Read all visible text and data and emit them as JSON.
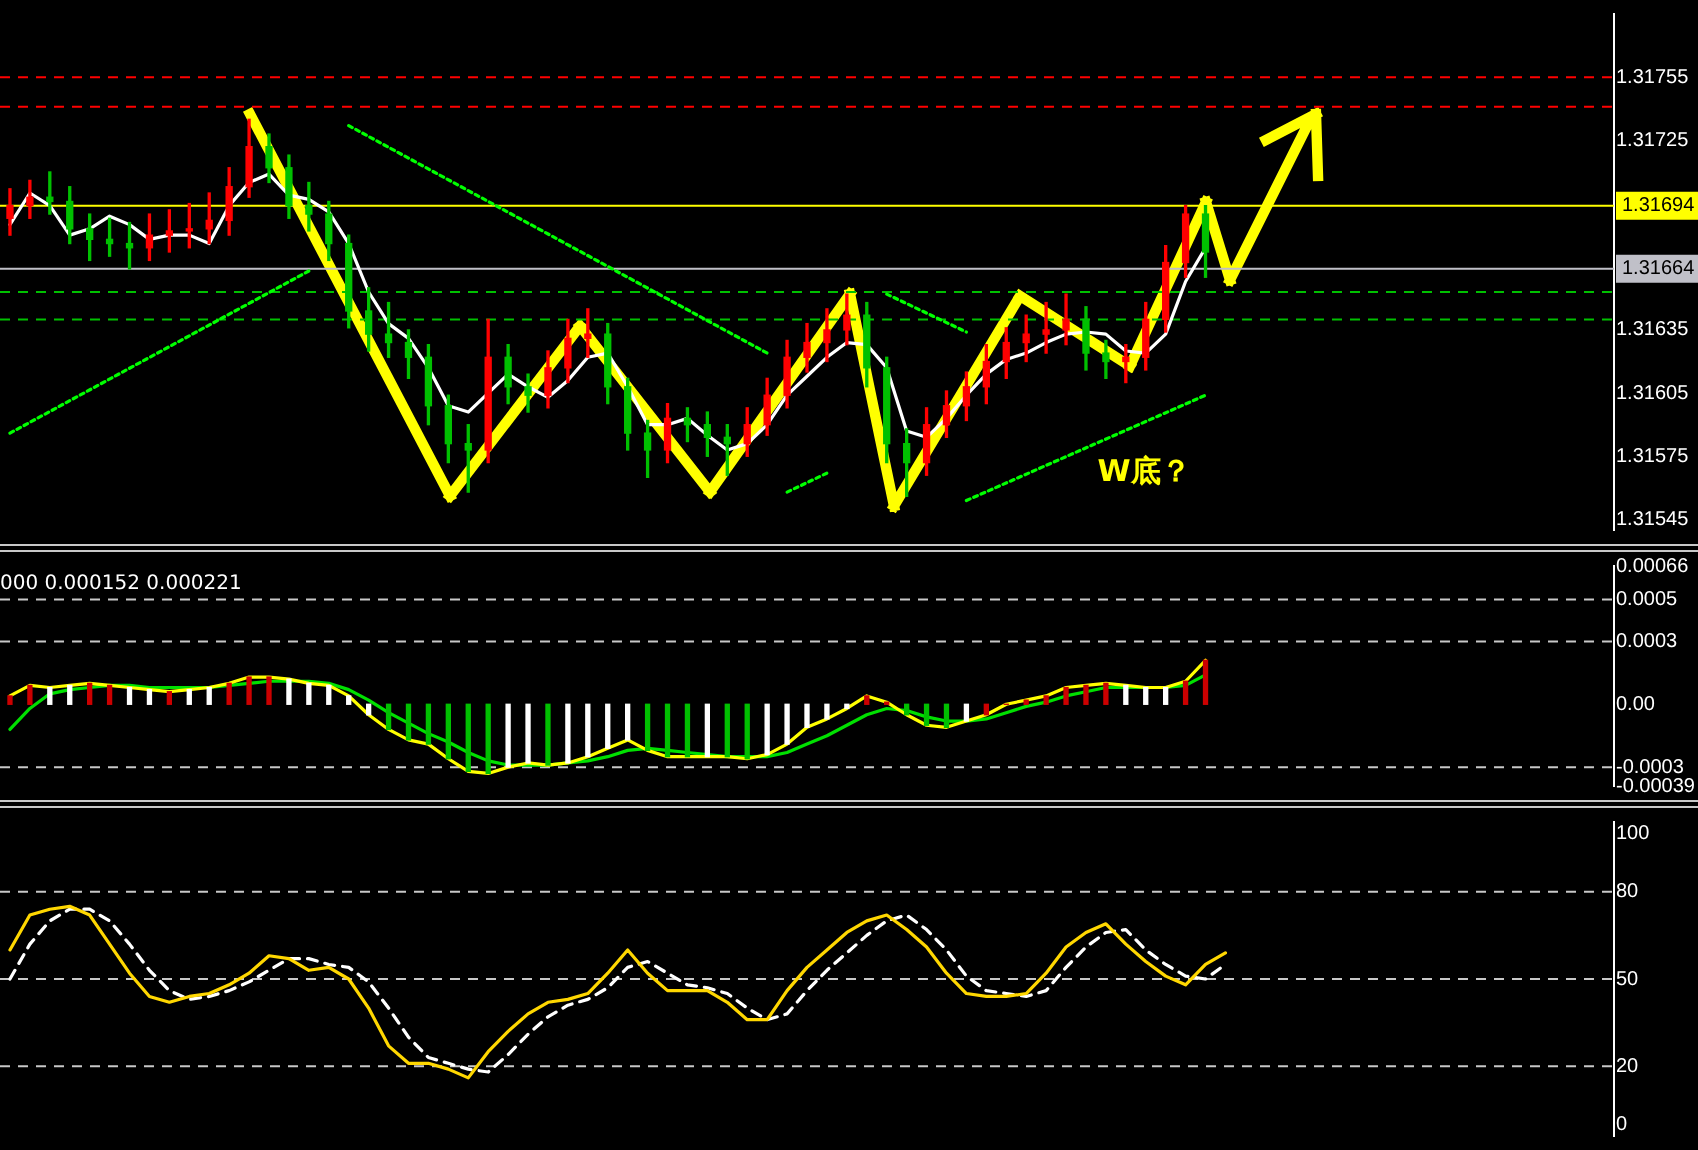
{
  "chart_data": [
    {
      "type": "candlestick",
      "categories": [
        null,
        null,
        null,
        null,
        null,
        null,
        null,
        null,
        null,
        null,
        null,
        null,
        null,
        null,
        null,
        null,
        null,
        null,
        null,
        null,
        null,
        null,
        null,
        null,
        null,
        null,
        null,
        null,
        null,
        null,
        null,
        null,
        null,
        null,
        null,
        null,
        null,
        null,
        null,
        null,
        null,
        null,
        null,
        null,
        null,
        null,
        null,
        null,
        null,
        null,
        null,
        null,
        null,
        null,
        null,
        null,
        null,
        null,
        null,
        null,
        null,
        null,
        null,
        null,
        null,
        null,
        null,
        null,
        null,
        null,
        null,
        null,
        null,
        null,
        null,
        null,
        null,
        null,
        null,
        null,
        null
      ],
      "ohlc": [
        [
          1.31688,
          1.31702,
          1.3168,
          1.31694
        ],
        [
          1.31694,
          1.31706,
          1.31688,
          1.31698
        ],
        [
          1.31698,
          1.3171,
          1.3169,
          1.31696
        ],
        [
          1.31696,
          1.31703,
          1.31676,
          1.31683
        ],
        [
          1.31683,
          1.3169,
          1.31668,
          1.31678
        ],
        [
          1.31678,
          1.31688,
          1.3167,
          1.31676
        ],
        [
          1.31676,
          1.31686,
          1.31664,
          1.31674
        ],
        [
          1.31674,
          1.3169,
          1.31668,
          1.3168
        ],
        [
          1.3168,
          1.31692,
          1.31672,
          1.31682
        ],
        [
          1.31682,
          1.31695,
          1.31674,
          1.31683
        ],
        [
          1.31683,
          1.317,
          1.31676,
          1.31687
        ],
        [
          1.31687,
          1.31712,
          1.3168,
          1.31703
        ],
        [
          1.31703,
          1.31735,
          1.31698,
          1.31722
        ],
        [
          1.31722,
          1.31728,
          1.31705,
          1.31712
        ],
        [
          1.31712,
          1.31718,
          1.31688,
          1.31694
        ],
        [
          1.31694,
          1.31705,
          1.31682,
          1.3169
        ],
        [
          1.3169,
          1.31696,
          1.31668,
          1.31676
        ],
        [
          1.31676,
          1.3168,
          1.31636,
          1.31644
        ],
        [
          1.31644,
          1.31655,
          1.31625,
          1.31633
        ],
        [
          1.31633,
          1.31648,
          1.31622,
          1.31629
        ],
        [
          1.31629,
          1.31635,
          1.31612,
          1.31622
        ],
        [
          1.31622,
          1.31628,
          1.3159,
          1.31599
        ],
        [
          1.31599,
          1.31604,
          1.31572,
          1.31581
        ],
        [
          1.31581,
          1.3159,
          1.31558,
          1.31578
        ],
        [
          1.31578,
          1.3164,
          1.31572,
          1.31622
        ],
        [
          1.31622,
          1.31628,
          1.316,
          1.31608
        ],
        [
          1.31608,
          1.31614,
          1.31596,
          1.31604
        ],
        [
          1.31604,
          1.31625,
          1.31598,
          1.31617
        ],
        [
          1.31617,
          1.3164,
          1.3161,
          1.31631
        ],
        [
          1.31631,
          1.31645,
          1.31622,
          1.31633
        ],
        [
          1.31633,
          1.31638,
          1.316,
          1.31608
        ],
        [
          1.31608,
          1.31612,
          1.31578,
          1.31586
        ],
        [
          1.31586,
          1.31592,
          1.31565,
          1.31578
        ],
        [
          1.31578,
          1.316,
          1.31572,
          1.31593
        ],
        [
          1.31593,
          1.31598,
          1.31582,
          1.3159
        ],
        [
          1.3159,
          1.31596,
          1.31575,
          1.31584
        ],
        [
          1.31584,
          1.3159,
          1.31566,
          1.31581
        ],
        [
          1.31581,
          1.31598,
          1.31575,
          1.3159
        ],
        [
          1.3159,
          1.31612,
          1.31585,
          1.31604
        ],
        [
          1.31604,
          1.3163,
          1.31598,
          1.31622
        ],
        [
          1.31622,
          1.31638,
          1.31615,
          1.31629
        ],
        [
          1.31629,
          1.31645,
          1.3162,
          1.31635
        ],
        [
          1.31635,
          1.31652,
          1.31628,
          1.31642
        ],
        [
          1.31642,
          1.31648,
          1.31608,
          1.31617
        ],
        [
          1.31617,
          1.31622,
          1.31572,
          1.31581
        ],
        [
          1.31581,
          1.31588,
          1.31556,
          1.31572
        ],
        [
          1.31572,
          1.31598,
          1.31566,
          1.3159
        ],
        [
          1.3159,
          1.31606,
          1.31584,
          1.31599
        ],
        [
          1.31599,
          1.31615,
          1.31592,
          1.31608
        ],
        [
          1.31608,
          1.31628,
          1.316,
          1.3162
        ],
        [
          1.3162,
          1.31636,
          1.31612,
          1.31629
        ],
        [
          1.31629,
          1.31642,
          1.3162,
          1.31633
        ],
        [
          1.31633,
          1.31648,
          1.31624,
          1.31635
        ],
        [
          1.31635,
          1.31652,
          1.31628,
          1.3164
        ],
        [
          1.3164,
          1.31646,
          1.31616,
          1.31624
        ],
        [
          1.31624,
          1.3163,
          1.31612,
          1.3162
        ],
        [
          1.3162,
          1.31628,
          1.3161,
          1.31622
        ],
        [
          1.31622,
          1.31648,
          1.31616,
          1.3164
        ],
        [
          1.3164,
          1.31675,
          1.31634,
          1.31667
        ],
        [
          1.31667,
          1.31694,
          1.3166,
          1.3169
        ],
        [
          1.3169,
          1.31694,
          1.3166,
          1.31672
        ],
        null,
        null,
        null,
        null,
        null,
        null,
        null,
        null,
        null,
        null,
        null,
        null,
        null,
        null,
        null,
        null,
        null,
        null,
        null,
        null
      ],
      "series": [
        {
          "type": "line",
          "color": "#ffffff",
          "values": [
            1.31685,
            1.317,
            1.31694,
            1.3168,
            1.31683,
            1.31689,
            1.31685,
            1.31678,
            1.3168,
            1.3168,
            1.31676,
            1.31694,
            1.31705,
            1.31709,
            1.31699,
            1.31697,
            1.31691,
            1.31676,
            1.31653,
            1.31638,
            1.31631,
            1.31617,
            1.31599,
            1.31596,
            1.31605,
            1.31614,
            1.31608,
            1.31603,
            1.31611,
            1.31622,
            1.31624,
            1.31608,
            1.3159,
            1.3159,
            1.31593,
            1.31585,
            1.31578,
            1.31581,
            1.3159,
            1.31604,
            1.31613,
            1.31622,
            1.31629,
            1.31628,
            1.31617,
            1.31587,
            1.31584,
            1.31593,
            1.31604,
            1.31614,
            1.31621,
            1.31624,
            1.31629,
            1.31633,
            1.31634,
            1.31633,
            1.31625,
            1.31624,
            1.31633,
            1.31658,
            1.31674,
            null,
            null,
            null,
            null,
            null,
            null,
            null,
            null,
            null,
            null,
            null,
            null,
            null,
            null,
            null,
            null,
            null,
            null,
            null,
            null
          ]
        },
        {
          "type": "line",
          "color": "#00ff00",
          "line_style": "dotted",
          "values": [
            1.31586,
            null,
            null,
            null,
            null,
            null,
            null,
            null,
            null,
            null,
            null,
            null,
            null,
            null,
            null,
            1.31663,
            null,
            null,
            null,
            null,
            null,
            null,
            null,
            null,
            null,
            null,
            null,
            null,
            null,
            null,
            null,
            null,
            null,
            null,
            null,
            null,
            null,
            null,
            null,
            null,
            null,
            null,
            null,
            null,
            null,
            null,
            null,
            null,
            null,
            null,
            null,
            null,
            null,
            null,
            null,
            null,
            null,
            null,
            null,
            null,
            null,
            null,
            null,
            null,
            null,
            null,
            null,
            null,
            null,
            null,
            null,
            null,
            null,
            null,
            null,
            null,
            null,
            null,
            null,
            null,
            null
          ]
        },
        {
          "type": "line",
          "color": "#00ff00",
          "line_style": "dotted",
          "values": [
            null,
            null,
            null,
            null,
            null,
            null,
            null,
            null,
            null,
            null,
            null,
            null,
            null,
            null,
            null,
            null,
            null,
            1.31732,
            null,
            null,
            null,
            null,
            null,
            null,
            null,
            null,
            null,
            null,
            null,
            null,
            null,
            null,
            null,
            null,
            null,
            null,
            null,
            null,
            1.31624,
            null,
            null,
            null,
            null,
            null,
            null,
            null,
            null,
            null,
            null,
            null,
            null,
            null,
            null,
            null,
            null,
            null,
            null,
            null,
            null,
            null,
            null,
            null,
            null,
            null,
            null,
            null,
            null,
            null,
            null,
            null,
            null,
            null,
            null,
            null,
            null,
            null,
            null,
            null,
            null,
            null,
            null
          ]
        },
        {
          "type": "line",
          "color": "#00ff00",
          "line_style": "dotted",
          "values": [
            null,
            null,
            null,
            null,
            null,
            null,
            null,
            null,
            null,
            null,
            null,
            null,
            null,
            null,
            null,
            null,
            null,
            null,
            null,
            null,
            null,
            null,
            null,
            null,
            null,
            null,
            null,
            null,
            null,
            null,
            null,
            null,
            null,
            null,
            null,
            null,
            null,
            null,
            null,
            1.31558,
            null,
            1.31567,
            null,
            null,
            null,
            null,
            null,
            null,
            null,
            null,
            null,
            null,
            null,
            null,
            null,
            null,
            null,
            null,
            null,
            null,
            null,
            null,
            null,
            null,
            null,
            null,
            null,
            null,
            null,
            null,
            null,
            null,
            null,
            null,
            null,
            null,
            null,
            null,
            null,
            null,
            null
          ]
        },
        {
          "type": "line",
          "color": "#00ff00",
          "line_style": "dotted",
          "values": [
            null,
            null,
            null,
            null,
            null,
            null,
            null,
            null,
            null,
            null,
            null,
            null,
            null,
            null,
            null,
            null,
            null,
            null,
            null,
            null,
            null,
            null,
            null,
            null,
            null,
            null,
            null,
            null,
            null,
            null,
            null,
            null,
            null,
            null,
            null,
            null,
            null,
            null,
            null,
            null,
            null,
            null,
            null,
            null,
            1.31652,
            null,
            null,
            null,
            1.31634,
            null,
            null,
            null,
            null,
            null,
            null,
            null,
            null,
            null,
            null,
            null,
            null,
            null,
            null,
            null,
            null,
            null,
            null,
            null,
            null,
            null,
            null,
            null,
            null,
            null,
            null,
            null,
            null,
            null,
            null,
            null,
            null
          ]
        },
        {
          "type": "line",
          "color": "#00ff00",
          "line_style": "dotted",
          "values": [
            null,
            null,
            null,
            null,
            null,
            null,
            null,
            null,
            null,
            null,
            null,
            null,
            null,
            null,
            null,
            null,
            null,
            null,
            null,
            null,
            null,
            null,
            null,
            null,
            null,
            null,
            null,
            null,
            null,
            null,
            null,
            null,
            null,
            null,
            null,
            null,
            null,
            null,
            null,
            null,
            null,
            null,
            null,
            null,
            null,
            null,
            null,
            null,
            1.31554,
            null,
            null,
            null,
            null,
            null,
            null,
            null,
            null,
            null,
            null,
            null,
            1.31604,
            null,
            null,
            null,
            null,
            null,
            null,
            null,
            null,
            null,
            null,
            null,
            null,
            null,
            null,
            null,
            null,
            null,
            null,
            null,
            null
          ]
        }
      ],
      "ylim": [
        1.3154,
        1.31785
      ],
      "yticks": [
        1.31755,
        1.31725,
        1.31635,
        1.31605,
        1.31575,
        1.31545
      ],
      "ref_lines": [
        {
          "axis": "y",
          "value": 1.31755,
          "color": "#ff0000",
          "line_style": "dashed"
        },
        {
          "axis": "y",
          "value": 1.31741,
          "color": "#ff0000",
          "line_style": "dashed"
        },
        {
          "axis": "y",
          "value": 1.31694,
          "color": "#ffff00",
          "line_style": "solid",
          "label": "1.31694"
        },
        {
          "axis": "y",
          "value": 1.31664,
          "color": "#c0c0c8",
          "line_style": "solid",
          "label": "1.31664"
        },
        {
          "axis": "y",
          "value": 1.31653,
          "color": "#00c000",
          "line_style": "dashed"
        },
        {
          "axis": "y",
          "value": 1.3164,
          "color": "#00c000",
          "line_style": "dashed"
        }
      ],
      "annotations": [
        "W底？"
      ],
      "tick_labels": "y",
      "marker": "none"
    },
    {
      "type": "bar",
      "title": "000 0.000152 0.000221",
      "categories": [
        null,
        null,
        null,
        null,
        null,
        null,
        null,
        null,
        null,
        null,
        null,
        null,
        null,
        null,
        null,
        null,
        null,
        null,
        null,
        null,
        null,
        null,
        null,
        null,
        null,
        null,
        null,
        null,
        null,
        null,
        null,
        null,
        null,
        null,
        null,
        null,
        null,
        null,
        null,
        null,
        null,
        null,
        null,
        null,
        null,
        null,
        null,
        null,
        null,
        null,
        null,
        null,
        null,
        null,
        null,
        null,
        null,
        null,
        null,
        null,
        null,
        null,
        null,
        null,
        null,
        null,
        null,
        null,
        null,
        null,
        null,
        null,
        null,
        null,
        null,
        null,
        null,
        null,
        null,
        null,
        null
      ],
      "series": [
        {
          "type": "bar",
          "values": [
            4e-05,
            9e-05,
            8e-05,
            9e-05,
            0.0001,
            9e-05,
            8e-05,
            7e-05,
            6e-05,
            7e-05,
            8e-05,
            0.0001,
            0.00013,
            0.00013,
            0.00012,
            0.0001,
            9e-05,
            4e-05,
            -5e-05,
            -0.00012,
            -0.00017,
            -0.00019,
            -0.00026,
            -0.00032,
            -0.00033,
            -0.0003,
            -0.00028,
            -0.00029,
            -0.00028,
            -0.00025,
            -0.00021,
            -0.00017,
            -0.00022,
            -0.00025,
            -0.00025,
            -0.00025,
            -0.00025,
            -0.00026,
            -0.00024,
            -0.00019,
            -0.00011,
            -7e-05,
            -2e-05,
            4e-05,
            1e-05,
            -5e-05,
            -0.0001,
            -0.00011,
            -8e-05,
            -5e-05,
            0,
            2e-05,
            4e-05,
            8e-05,
            9e-05,
            0.0001,
            9e-05,
            8e-05,
            8e-05,
            0.00011,
            0.00021,
            null,
            null,
            null,
            null,
            null,
            null,
            null,
            null,
            null,
            null,
            null,
            null,
            null,
            null,
            null,
            null,
            null,
            null,
            null,
            null
          ],
          "colors": [
            "#cc0000",
            "#cc0000",
            "#ffffff",
            "#ffffff",
            "#cc0000",
            "#cc0000",
            "#ffffff",
            "#ffffff",
            "#cc0000",
            "#ffffff",
            "#ffffff",
            "#cc0000",
            "#cc0000",
            "#cc0000",
            "#ffffff",
            "#ffffff",
            "#ffffff",
            "#ffffff",
            "#ffffff",
            "#00c000",
            "#00c000",
            "#00c000",
            "#00c000",
            "#00c000",
            "#00c000",
            "#ffffff",
            "#ffffff",
            "#00c000",
            "#ffffff",
            "#ffffff",
            "#ffffff",
            "#ffffff",
            "#00c000",
            "#00c000",
            "#00c000",
            "#ffffff",
            "#00c000",
            "#00c000",
            "#ffffff",
            "#ffffff",
            "#ffffff",
            "#ffffff",
            "#ffffff",
            "#cc0000",
            "#cc0000",
            "#00c000",
            "#00c000",
            "#00c000",
            "#ffffff",
            "#cc0000",
            "#cc0000",
            "#cc0000",
            "#cc0000",
            "#cc0000",
            "#cc0000",
            "#cc0000",
            "#ffffff",
            "#ffffff",
            "#ffffff",
            "#cc0000",
            "#cc0000",
            null,
            null,
            null,
            null,
            null,
            null,
            null,
            null,
            null,
            null,
            null,
            null,
            null,
            null,
            null,
            null,
            null,
            null,
            null,
            null
          ]
        },
        {
          "type": "line",
          "color": "#ffff00",
          "values": [
            4e-05,
            9e-05,
            8e-05,
            9e-05,
            0.0001,
            9e-05,
            8e-05,
            7e-05,
            6e-05,
            7e-05,
            8e-05,
            0.0001,
            0.00013,
            0.00013,
            0.00012,
            0.0001,
            9e-05,
            4e-05,
            -5e-05,
            -0.00012,
            -0.00017,
            -0.00019,
            -0.00026,
            -0.00032,
            -0.00033,
            -0.0003,
            -0.00028,
            -0.00029,
            -0.00028,
            -0.00025,
            -0.00021,
            -0.00017,
            -0.00022,
            -0.00025,
            -0.00025,
            -0.00025,
            -0.00025,
            -0.00026,
            -0.00024,
            -0.00019,
            -0.00011,
            -7e-05,
            -2e-05,
            4e-05,
            1e-05,
            -5e-05,
            -0.0001,
            -0.00011,
            -8e-05,
            -5e-05,
            0,
            2e-05,
            4e-05,
            8e-05,
            9e-05,
            0.0001,
            9e-05,
            8e-05,
            8e-05,
            0.00011,
            0.00021,
            null,
            null,
            null,
            null,
            null,
            null,
            null,
            null,
            null,
            null,
            null,
            null,
            null,
            null,
            null,
            null,
            null,
            null,
            null,
            null
          ]
        },
        {
          "type": "line",
          "color": "#00e000",
          "values": [
            -0.00012,
            -2e-05,
            5e-05,
            7e-05,
            8e-05,
            9e-05,
            9e-05,
            8e-05,
            8e-05,
            8e-05,
            8e-05,
            9e-05,
            0.0001,
            0.00011,
            0.00011,
            0.00011,
            0.0001,
            7e-05,
            2e-05,
            -4e-05,
            -9e-05,
            -0.00014,
            -0.00018,
            -0.00023,
            -0.00027,
            -0.00029,
            -0.00029,
            -0.00029,
            -0.00028,
            -0.00027,
            -0.00025,
            -0.00022,
            -0.00021,
            -0.00022,
            -0.00023,
            -0.00024,
            -0.00025,
            -0.00025,
            -0.00025,
            -0.00023,
            -0.00019,
            -0.00015,
            -0.0001,
            -5e-05,
            -2e-05,
            -3e-05,
            -6e-05,
            -8e-05,
            -8e-05,
            -7e-05,
            -4e-05,
            -1e-05,
            1e-05,
            4e-05,
            6e-05,
            8e-05,
            8e-05,
            8e-05,
            8e-05,
            9e-05,
            0.00014,
            null,
            null,
            null,
            null,
            null,
            null,
            null,
            null,
            null,
            null,
            null,
            null,
            null,
            null,
            null,
            null,
            null,
            null,
            null,
            null
          ]
        }
      ],
      "ylim": [
        -0.00039,
        0.00066
      ],
      "yticks": [
        0.00066,
        0.0005,
        0.0003,
        {
          "value": 0,
          "label": "0.00"
        },
        -0.0003,
        -0.00039
      ],
      "ref_lines": [
        {
          "axis": "y",
          "value": 0.0005,
          "color": "#c8c8c8",
          "line_style": "dashed"
        },
        {
          "axis": "y",
          "value": 0.0003,
          "color": "#c8c8c8",
          "line_style": "dashed"
        },
        {
          "axis": "y",
          "value": -0.0003,
          "color": "#c8c8c8",
          "line_style": "dashed"
        }
      ],
      "tick_labels": "y",
      "marker": "none"
    },
    {
      "type": "line",
      "categories": [
        null,
        null,
        null,
        null,
        null,
        null,
        null,
        null,
        null,
        null,
        null,
        null,
        null,
        null,
        null,
        null,
        null,
        null,
        null,
        null,
        null,
        null,
        null,
        null,
        null,
        null,
        null,
        null,
        null,
        null,
        null,
        null,
        null,
        null,
        null,
        null,
        null,
        null,
        null,
        null,
        null,
        null,
        null,
        null,
        null,
        null,
        null,
        null,
        null,
        null,
        null,
        null,
        null,
        null,
        null,
        null,
        null,
        null,
        null,
        null,
        null,
        null,
        null,
        null,
        null,
        null,
        null,
        null,
        null,
        null,
        null,
        null,
        null,
        null,
        null,
        null,
        null,
        null,
        null,
        null,
        null
      ],
      "series": [
        {
          "color": "#ffd700",
          "values": [
            60,
            72,
            74,
            75,
            72,
            62,
            52,
            44,
            42,
            44,
            45,
            48,
            52,
            58,
            57,
            53,
            54,
            50,
            40,
            27,
            21,
            21,
            19,
            16,
            25,
            32,
            38,
            42,
            43,
            45,
            52,
            60,
            52,
            46,
            46,
            46,
            42,
            36,
            36,
            46,
            54,
            60,
            66,
            70,
            72,
            67,
            61,
            52,
            45,
            44,
            44,
            45,
            52,
            61,
            66,
            69,
            62,
            56,
            51,
            48,
            55,
            59,
            null,
            null,
            null,
            null,
            null,
            null,
            null,
            null,
            null,
            null,
            null,
            null,
            null,
            null,
            null,
            null,
            null,
            null,
            null
          ]
        },
        {
          "color": "#ffffff",
          "line_style": "dashed",
          "values": [
            50,
            62,
            70,
            74,
            74,
            70,
            62,
            53,
            46,
            43,
            44,
            46,
            49,
            53,
            57,
            57,
            55,
            54,
            49,
            40,
            30,
            23,
            21,
            19,
            18,
            24,
            31,
            37,
            41,
            43,
            47,
            54,
            56,
            52,
            48,
            47,
            45,
            40,
            36,
            38,
            46,
            53,
            59,
            65,
            70,
            72,
            67,
            60,
            51,
            46,
            45,
            44,
            46,
            54,
            61,
            66,
            67,
            60,
            55,
            51,
            50,
            55,
            null,
            null,
            null,
            null,
            null,
            null,
            null,
            null,
            null,
            null,
            null,
            null,
            null,
            null,
            null,
            null,
            null,
            null,
            null
          ]
        }
      ],
      "ylim": [
        -4,
        104
      ],
      "yticks": [
        100,
        80,
        50,
        20,
        0
      ],
      "ref_lines": [
        {
          "axis": "y",
          "value": 80,
          "color": "#c8c8c8",
          "line_style": "dashed"
        },
        {
          "axis": "y",
          "value": 50,
          "color": "#c8c8c8",
          "line_style": "dashed"
        },
        {
          "axis": "y",
          "value": 20,
          "color": "#c8c8c8",
          "line_style": "dashed"
        }
      ],
      "tick_labels": "y",
      "marker": "none"
    }
  ]
}
